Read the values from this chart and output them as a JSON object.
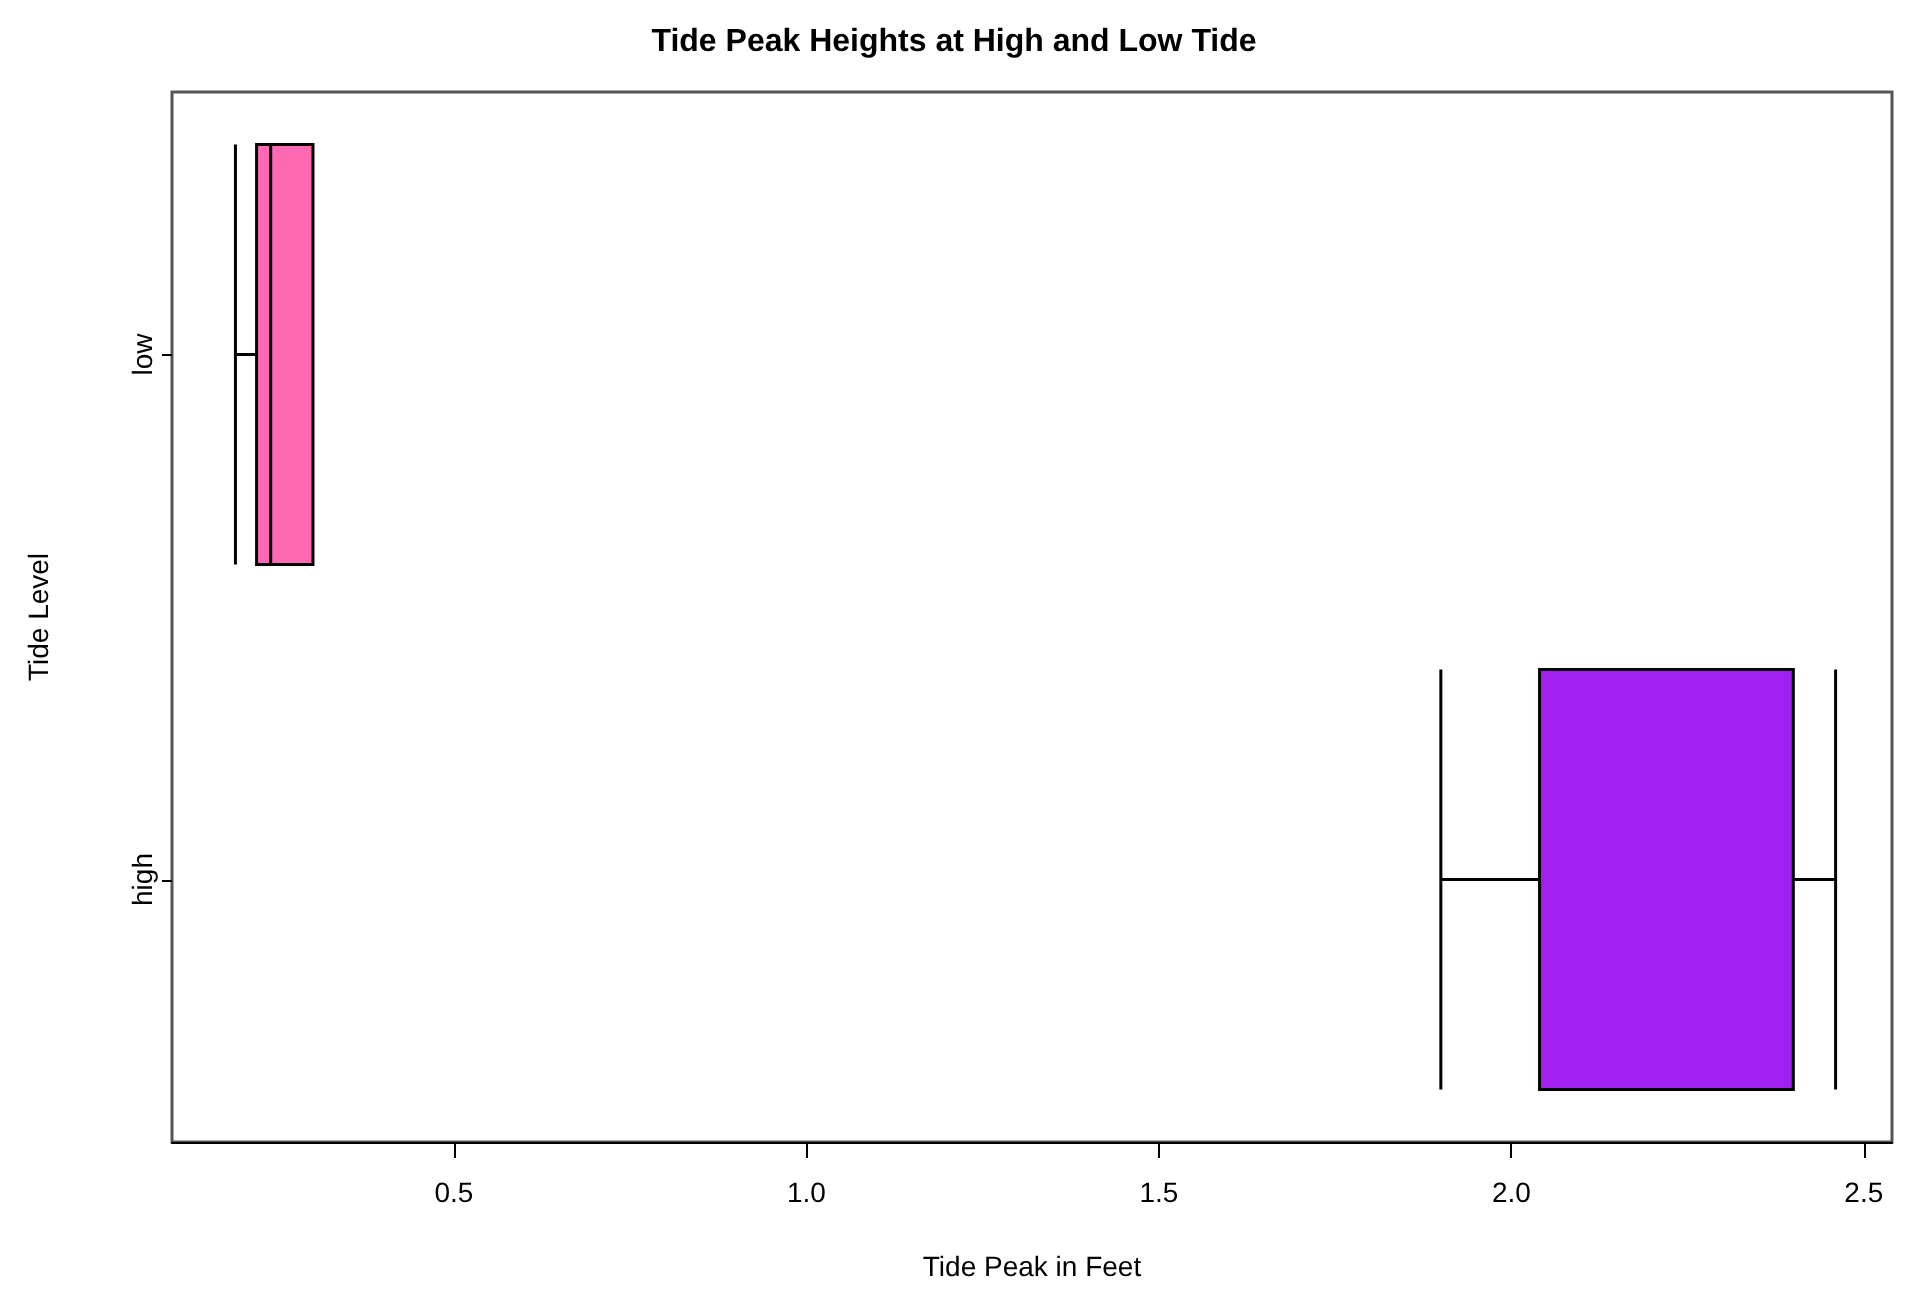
{
  "chart_data": {
    "type": "box",
    "orientation": "horizontal",
    "title": "Tide Peak Heights at High and Low Tide",
    "xlabel": "Tide Peak in Feet",
    "ylabel": "Tide Level",
    "categories": [
      "low",
      "high"
    ],
    "boxes": [
      {
        "low": 0.19,
        "q1": 0.22,
        "median": 0.24,
        "q3": 0.3,
        "high": 0.3
      },
      {
        "low": 1.9,
        "q1": 2.04,
        "median": 2.04,
        "q3": 2.4,
        "high": 2.46
      }
    ],
    "colors": [
      "#ff69b4",
      "#a020f0"
    ],
    "xlim": [
      0.1,
      2.54
    ],
    "xticks": [
      0.5,
      {
        "value": 1,
        "label": "1.0"
      },
      1.5,
      {
        "value": 2,
        "label": "2.0"
      },
      2.5
    ],
    "grid": false
  }
}
